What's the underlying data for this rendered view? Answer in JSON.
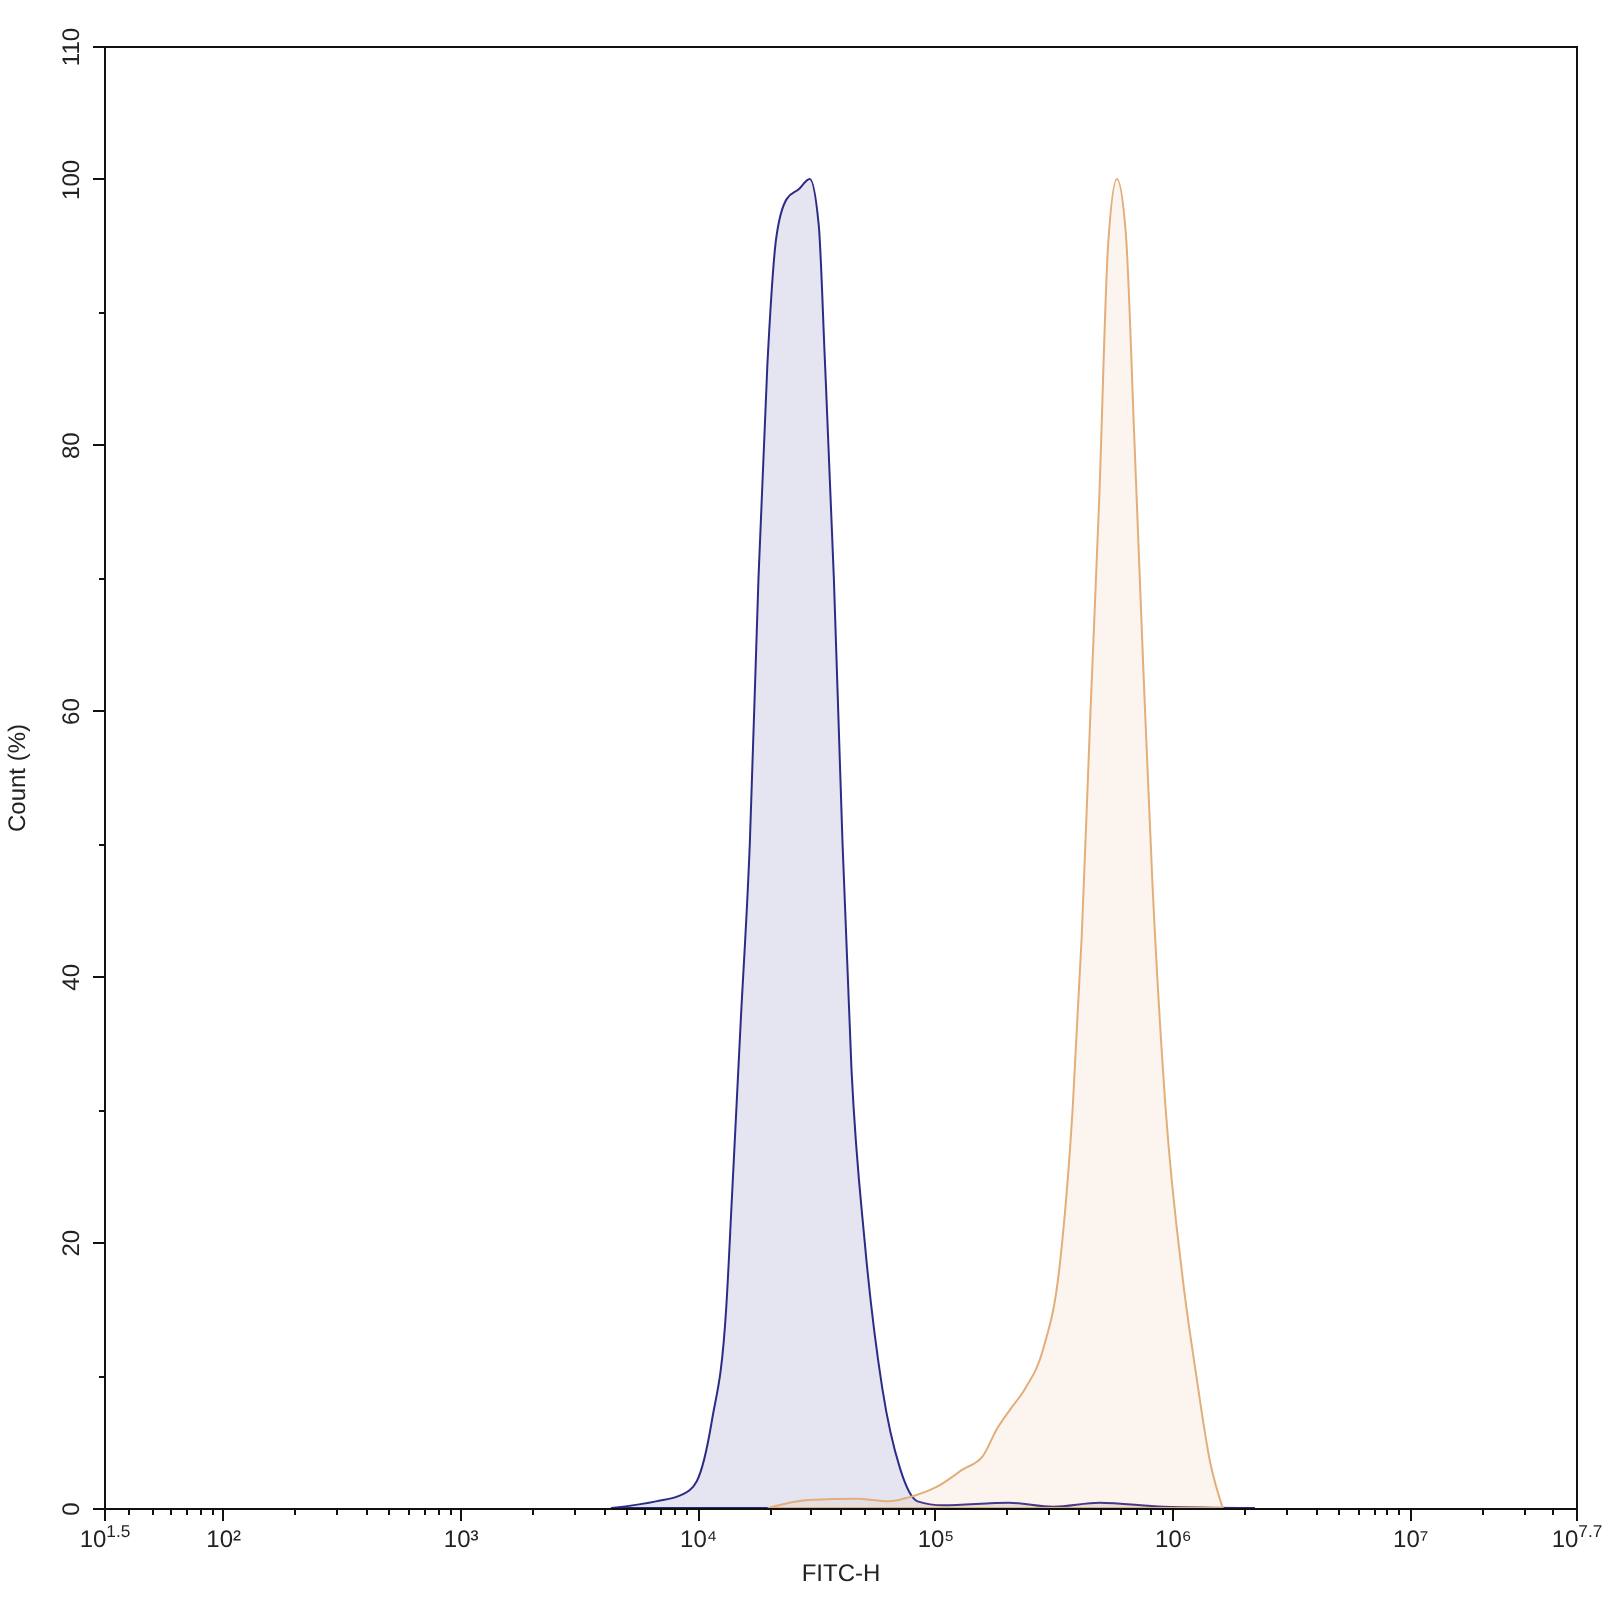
{
  "chart_data": {
    "type": "area",
    "xlabel": "FITC-H",
    "ylabel": "Count (%)",
    "log": "x",
    "xlim": [
      31.62,
      50118723
    ],
    "xticks": [
      {
        "value": 31.62,
        "label": "10$^{1.5}$"
      },
      {
        "value": 40,
        "label": null
      },
      {
        "value": 50,
        "label": null
      },
      {
        "value": 60,
        "label": null
      },
      {
        "value": 70,
        "label": null
      },
      {
        "value": 80,
        "label": null
      },
      {
        "value": 90,
        "label": null
      },
      {
        "value": 100,
        "label": "10²"
      },
      {
        "value": 200,
        "label": null
      },
      {
        "value": 300,
        "label": null
      },
      {
        "value": 400,
        "label": null
      },
      {
        "value": 500,
        "label": null
      },
      {
        "value": 600,
        "label": null
      },
      {
        "value": 700,
        "label": null
      },
      {
        "value": 800,
        "label": null
      },
      {
        "value": 900,
        "label": null
      },
      {
        "value": 1000,
        "label": "10³"
      },
      {
        "value": 2000,
        "label": null
      },
      {
        "value": 3000,
        "label": null
      },
      {
        "value": 4000,
        "label": null
      },
      {
        "value": 5000,
        "label": null
      },
      {
        "value": 6000,
        "label": null
      },
      {
        "value": 7000,
        "label": null
      },
      {
        "value": 8000,
        "label": null
      },
      {
        "value": 9000,
        "label": null
      },
      {
        "value": 10000,
        "label": "10⁴"
      },
      {
        "value": 20000,
        "label": null
      },
      {
        "value": 30000,
        "label": null
      },
      {
        "value": 40000,
        "label": null
      },
      {
        "value": 50000,
        "label": null
      },
      {
        "value": 60000,
        "label": null
      },
      {
        "value": 70000,
        "label": null
      },
      {
        "value": 80000,
        "label": null
      },
      {
        "value": 90000,
        "label": null
      },
      {
        "value": 100000,
        "label": "10⁵"
      },
      {
        "value": 200000,
        "label": null
      },
      {
        "value": 300000,
        "label": null
      },
      {
        "value": 400000,
        "label": null
      },
      {
        "value": 500000,
        "label": null
      },
      {
        "value": 600000,
        "label": null
      },
      {
        "value": 700000,
        "label": null
      },
      {
        "value": 800000,
        "label": null
      },
      {
        "value": 900000,
        "label": null
      },
      {
        "value": 1000000,
        "label": "10⁶"
      },
      {
        "value": 2000000,
        "label": null
      },
      {
        "value": 3000000,
        "label": null
      },
      {
        "value": 4000000,
        "label": null
      },
      {
        "value": 5000000,
        "label": null
      },
      {
        "value": 6000000,
        "label": null
      },
      {
        "value": 7000000,
        "label": null
      },
      {
        "value": 8000000,
        "label": null
      },
      {
        "value": 9000000,
        "label": null
      },
      {
        "value": 10000000,
        "label": "10⁷"
      },
      {
        "value": 20000000,
        "label": null
      },
      {
        "value": 30000000,
        "label": null
      },
      {
        "value": 40000000,
        "label": null
      },
      {
        "value": 50118723,
        "label": "10$^{7.7}$"
      }
    ],
    "ylim": [
      0,
      110
    ],
    "yticks": [
      0,
      {
        "value": 10,
        "label": null
      },
      20,
      {
        "value": 30,
        "label": null
      },
      40,
      {
        "value": 50,
        "label": null
      },
      60,
      {
        "value": 70,
        "label": null
      },
      80,
      {
        "value": 90,
        "label": null
      },
      100,
      110
    ],
    "series": [
      {
        "color": "#2c2c88",
        "x": [
          4350,
          6680,
          8600,
          9910,
          11500,
          13200,
          13960,
          15200,
          16600,
          18060,
          19680,
          21430,
          23760,
          26600,
          29700,
          32400,
          34350,
          37500,
          40800,
          44500,
          50600,
          60000,
          71200,
          84500,
          108000,
          205000,
          315000,
          493000,
          918000,
          2210000
        ],
        "values": [
          0,
          0.5,
          1,
          2,
          6.6,
          15,
          23.4,
          36.6,
          50,
          70,
          86,
          95.5,
          98.5,
          99.2,
          100,
          96.5,
          86.5,
          70,
          50,
          33,
          20,
          9,
          3,
          0.5,
          0.2,
          0.4,
          0.1,
          0.4,
          0.1,
          0
        ]
      },
      {
        "color": "#e3ae7a",
        "x": [
          19900,
          29300,
          46800,
          63800,
          77600,
          102000,
          131000,
          159000,
          183000,
          209000,
          240000,
          286000,
          334000,
          380000,
          415000,
          452000,
          492000,
          536000,
          584000,
          636000,
          693000,
          755000,
          824000,
          937000,
          1110000,
          1260000,
          1440000,
          1630000
        ],
        "values": [
          0,
          0.6,
          0.7,
          0.5,
          0.8,
          1.6,
          2.9,
          3.9,
          6,
          7.5,
          9,
          12,
          18,
          30,
          43,
          60,
          76,
          95,
          100,
          96,
          80,
          63,
          47,
          30,
          17,
          10,
          3.5,
          0
        ]
      }
    ]
  }
}
